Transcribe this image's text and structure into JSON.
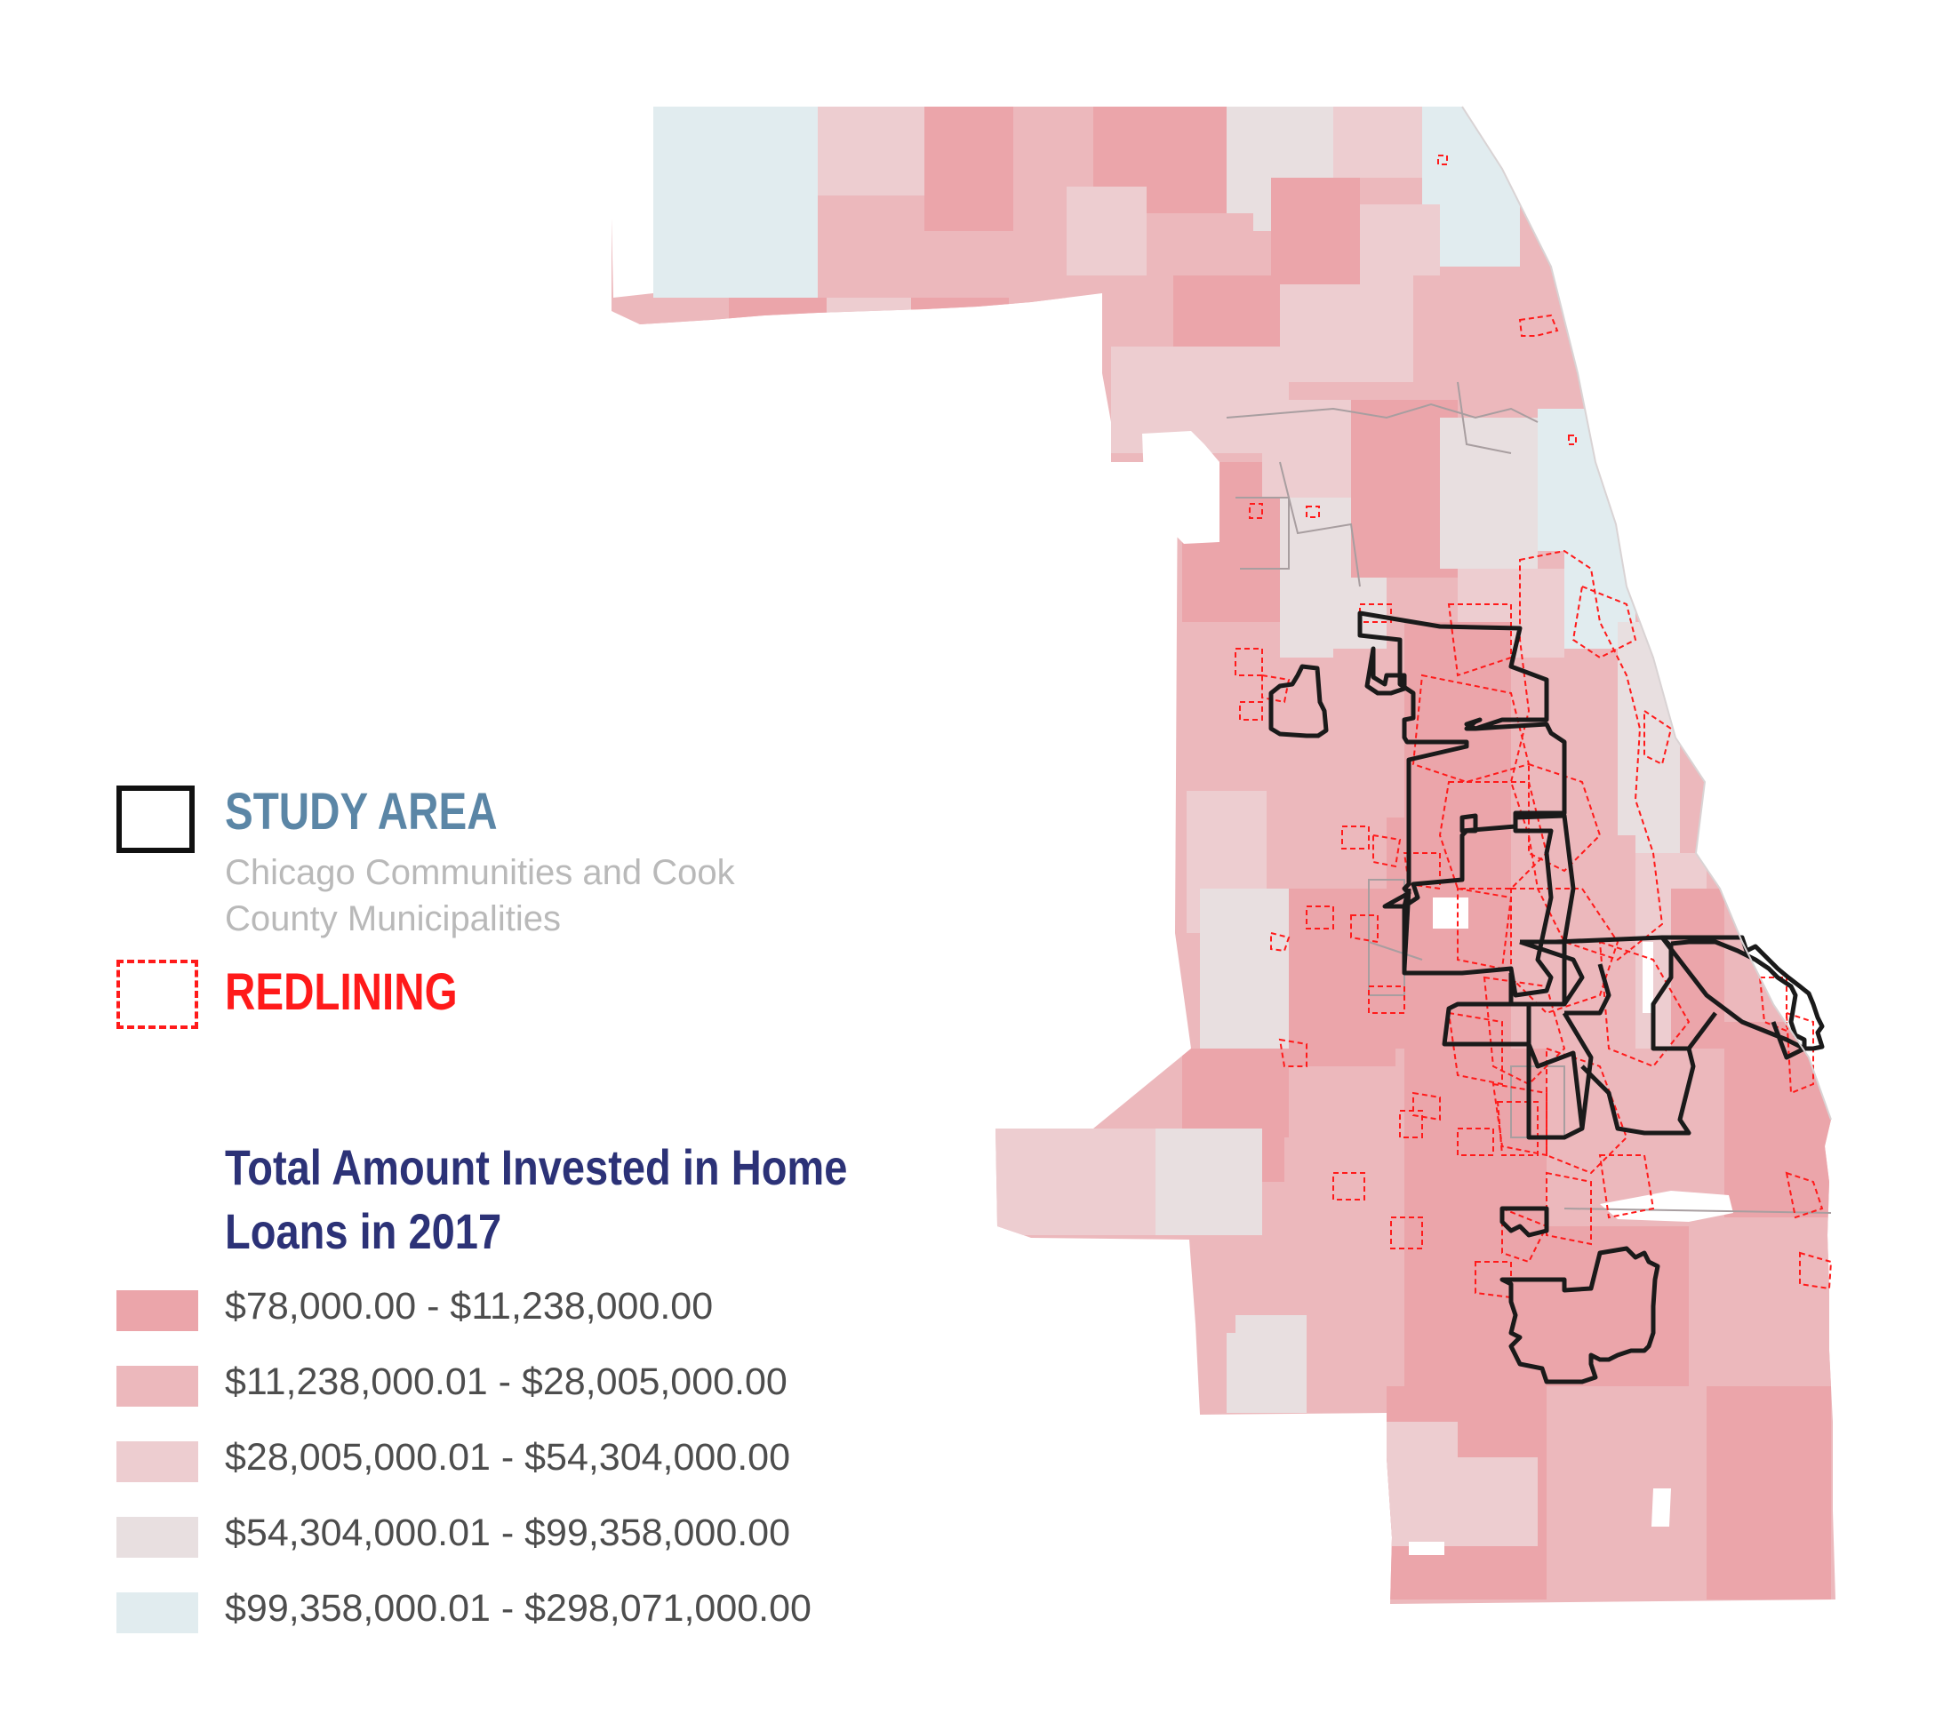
{
  "legend": {
    "study_area": {
      "title": "STUDY AREA",
      "subtitle_line1": "Chicago Communities and Cook",
      "subtitle_line2": "County Municipalities"
    },
    "redlining": {
      "title": "REDLINING"
    },
    "investment": {
      "title_line1": "Total Amount Invested in Home",
      "title_line2": "Loans in 2017",
      "classes": [
        {
          "label": "$78,000.00 - $11,238,000.00",
          "color": "#eba5aa"
        },
        {
          "label": "$11,238,000.01 - $28,005,000.00",
          "color": "#ecb8bc"
        },
        {
          "label": "$28,005,000.01 - $54,304,000.00",
          "color": "#edcdd0"
        },
        {
          "label": "$54,304,000.01 - $99,358,000.00",
          "color": "#e8dfe0"
        },
        {
          "label": "$99,358,000.01 - $298,071,000.00",
          "color": "#e1ecef"
        }
      ]
    }
  },
  "map": {
    "study_area_stroke": "#1a1a1a",
    "redlining_stroke": "#ff1a1a",
    "municipal_boundary_stroke": "#a89ea0",
    "background": "#ffffff"
  }
}
